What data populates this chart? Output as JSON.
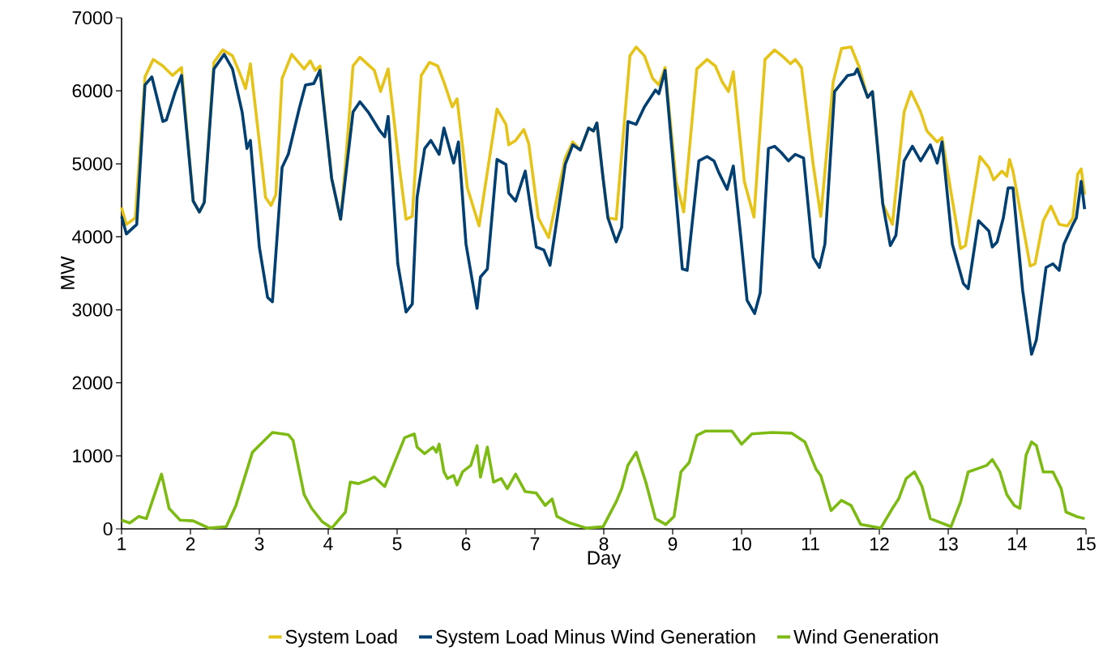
{
  "chart_data": {
    "type": "line",
    "xlabel": "Day",
    "ylabel": "MW",
    "xlim": [
      1,
      15
    ],
    "xticks": [
      1,
      2,
      3,
      4,
      5,
      6,
      7,
      8,
      9,
      10,
      11,
      12,
      13,
      14,
      15
    ],
    "ylim": [
      0,
      7000
    ],
    "yticks": [
      0,
      1000,
      2000,
      3000,
      4000,
      5000,
      6000,
      7000
    ],
    "grid": false,
    "legend": "bottom",
    "marker": "none",
    "line_style": "solid",
    "series": [
      {
        "name": "System Load",
        "color": "#e6c319",
        "x": [
          1.0,
          1.07,
          1.2,
          1.34,
          1.46,
          1.6,
          1.74,
          1.87,
          2.04,
          2.13,
          2.2,
          2.34,
          2.47,
          2.61,
          2.73,
          2.8,
          2.87,
          3.0,
          3.09,
          3.17,
          3.24,
          3.33,
          3.47,
          3.65,
          3.74,
          3.81,
          3.88,
          4.05,
          4.18,
          4.25,
          4.36,
          4.46,
          4.67,
          4.76,
          4.87,
          5.04,
          5.13,
          5.22,
          5.35,
          5.47,
          5.59,
          5.68,
          5.8,
          5.87,
          6.02,
          6.19,
          6.45,
          6.58,
          6.62,
          6.72,
          6.84,
          6.91,
          7.05,
          7.2,
          7.44,
          7.55,
          7.66,
          7.78,
          7.85,
          7.9,
          7.99,
          8.06,
          8.18,
          8.38,
          8.47,
          8.59,
          8.71,
          8.8,
          8.89,
          9.05,
          9.16,
          9.35,
          9.5,
          9.62,
          9.72,
          9.81,
          9.88,
          10.04,
          10.18,
          10.34,
          10.48,
          10.61,
          10.71,
          10.78,
          10.87,
          11.04,
          11.15,
          11.33,
          11.45,
          11.59,
          11.71,
          11.83,
          11.9,
          12.05,
          12.19,
          12.36,
          12.46,
          12.6,
          12.69,
          12.84,
          12.91,
          13.06,
          13.18,
          13.25,
          13.46,
          13.59,
          13.66,
          13.78,
          13.85,
          13.89,
          13.94,
          14.19,
          14.26,
          14.38,
          14.49,
          14.61,
          14.73,
          14.81,
          14.88,
          14.93,
          14.98
        ],
        "values": [
          4400,
          4170,
          4260,
          6190,
          6430,
          6340,
          6210,
          6320,
          4490,
          4340,
          4470,
          6390,
          6560,
          6480,
          6210,
          6030,
          6370,
          5300,
          4540,
          4430,
          4580,
          6170,
          6500,
          6300,
          6410,
          6280,
          6340,
          4800,
          4240,
          4990,
          6340,
          6460,
          6280,
          5990,
          6300,
          4900,
          4240,
          4280,
          6210,
          6390,
          6340,
          6120,
          5780,
          5890,
          4670,
          4150,
          5750,
          5540,
          5260,
          5320,
          5470,
          5280,
          4260,
          3990,
          5080,
          5300,
          5190,
          5490,
          5450,
          5560,
          4800,
          4260,
          4240,
          6480,
          6600,
          6480,
          6170,
          6080,
          6320,
          4760,
          4340,
          6300,
          6430,
          6340,
          6120,
          5990,
          6260,
          4760,
          4270,
          6430,
          6560,
          6460,
          6370,
          6430,
          6320,
          4990,
          4280,
          6120,
          6580,
          6600,
          6320,
          5910,
          5990,
          4450,
          4170,
          5710,
          5990,
          5710,
          5450,
          5300,
          5360,
          4500,
          3840,
          3880,
          5100,
          4950,
          4780,
          4900,
          4830,
          5060,
          4900,
          3600,
          3630,
          4220,
          4420,
          4170,
          4150,
          4260,
          4860,
          4930,
          4580
        ]
      },
      {
        "name": "System Load Minus Wind Generation",
        "color": "#003f72",
        "x": [
          1.0,
          1.07,
          1.22,
          1.34,
          1.44,
          1.6,
          1.65,
          1.78,
          1.87,
          2.04,
          2.13,
          2.2,
          2.34,
          2.49,
          2.61,
          2.75,
          2.82,
          2.87,
          3.0,
          3.12,
          3.19,
          3.33,
          3.42,
          3.58,
          3.67,
          3.79,
          3.88,
          4.05,
          4.18,
          4.36,
          4.46,
          4.58,
          4.75,
          4.82,
          4.87,
          5.01,
          5.13,
          5.22,
          5.29,
          5.4,
          5.49,
          5.61,
          5.68,
          5.82,
          5.89,
          6.0,
          6.16,
          6.21,
          6.31,
          6.45,
          6.58,
          6.62,
          6.72,
          6.86,
          7.02,
          7.13,
          7.22,
          7.44,
          7.55,
          7.66,
          7.78,
          7.85,
          7.9,
          7.99,
          8.06,
          8.18,
          8.26,
          8.35,
          8.47,
          8.59,
          8.75,
          8.8,
          8.89,
          9.05,
          9.14,
          9.21,
          9.38,
          9.5,
          9.6,
          9.67,
          9.79,
          9.88,
          9.99,
          10.08,
          10.19,
          10.27,
          10.39,
          10.48,
          10.58,
          10.68,
          10.78,
          10.9,
          11.04,
          11.13,
          11.21,
          11.35,
          11.54,
          11.64,
          11.68,
          11.83,
          11.9,
          12.05,
          12.16,
          12.24,
          12.36,
          12.48,
          12.6,
          12.74,
          12.84,
          12.91,
          13.06,
          13.22,
          13.29,
          13.44,
          13.59,
          13.64,
          13.71,
          13.8,
          13.87,
          13.94,
          14.08,
          14.21,
          14.28,
          14.42,
          14.52,
          14.61,
          14.68,
          14.81,
          14.86,
          14.93,
          14.98
        ],
        "values": [
          4280,
          4040,
          4170,
          6080,
          6190,
          5580,
          5600,
          5990,
          6210,
          4490,
          4340,
          4470,
          6300,
          6500,
          6300,
          5710,
          5210,
          5320,
          3860,
          3170,
          3110,
          4950,
          5130,
          5760,
          6080,
          6100,
          6280,
          4800,
          4240,
          5710,
          5850,
          5710,
          5450,
          5370,
          5650,
          3630,
          2970,
          3080,
          4540,
          5210,
          5320,
          5130,
          5490,
          5010,
          5300,
          3900,
          3020,
          3450,
          3560,
          5060,
          4990,
          4600,
          4490,
          4900,
          3860,
          3820,
          3610,
          4990,
          5260,
          5190,
          5490,
          5450,
          5560,
          4800,
          4260,
          3930,
          4130,
          5580,
          5540,
          5780,
          6010,
          5960,
          6280,
          4540,
          3560,
          3540,
          5040,
          5100,
          5040,
          4880,
          4650,
          4970,
          3990,
          3130,
          2950,
          3230,
          5210,
          5240,
          5150,
          5040,
          5130,
          5080,
          3720,
          3580,
          3900,
          5990,
          6210,
          6230,
          6300,
          5910,
          5990,
          4450,
          3880,
          4020,
          5040,
          5240,
          5040,
          5260,
          5010,
          5300,
          3900,
          3360,
          3290,
          4220,
          4080,
          3860,
          3930,
          4260,
          4670,
          4670,
          3270,
          2390,
          2590,
          3580,
          3630,
          3540,
          3900,
          4170,
          4260,
          4760,
          4380
        ]
      },
      {
        "name": "Wind Generation",
        "color": "#7dbb14",
        "x": [
          1.0,
          1.12,
          1.25,
          1.36,
          1.58,
          1.69,
          1.85,
          2.04,
          2.27,
          2.52,
          2.66,
          2.9,
          3.05,
          3.19,
          3.42,
          3.49,
          3.65,
          3.76,
          3.91,
          4.05,
          4.25,
          4.32,
          4.44,
          4.58,
          4.67,
          4.82,
          5.11,
          5.25,
          5.29,
          5.4,
          5.52,
          5.57,
          5.61,
          5.68,
          5.73,
          5.82,
          5.87,
          5.95,
          6.07,
          6.16,
          6.21,
          6.31,
          6.4,
          6.51,
          6.6,
          6.72,
          6.86,
          7.02,
          7.15,
          7.25,
          7.32,
          7.51,
          7.75,
          7.99,
          8.18,
          8.26,
          8.35,
          8.47,
          8.61,
          8.75,
          8.9,
          9.02,
          9.12,
          9.24,
          9.35,
          9.48,
          9.86,
          10.0,
          10.15,
          10.44,
          10.73,
          10.92,
          11.08,
          11.15,
          11.3,
          11.45,
          11.59,
          11.73,
          12.02,
          12.19,
          12.28,
          12.39,
          12.51,
          12.62,
          12.74,
          13.04,
          13.18,
          13.29,
          13.41,
          13.56,
          13.64,
          13.75,
          13.85,
          13.96,
          14.04,
          14.13,
          14.21,
          14.28,
          14.38,
          14.52,
          14.64,
          14.71,
          14.86,
          14.98
        ],
        "values": [
          120,
          80,
          170,
          140,
          750,
          280,
          120,
          110,
          10,
          30,
          320,
          1050,
          1190,
          1320,
          1290,
          1210,
          470,
          280,
          100,
          10,
          230,
          640,
          620,
          670,
          710,
          580,
          1250,
          1300,
          1120,
          1030,
          1120,
          1050,
          1160,
          780,
          690,
          730,
          600,
          780,
          870,
          1140,
          710,
          1120,
          640,
          690,
          550,
          750,
          510,
          490,
          320,
          410,
          170,
          80,
          10,
          30,
          370,
          550,
          870,
          1050,
          640,
          140,
          60,
          170,
          780,
          910,
          1280,
          1340,
          1340,
          1160,
          1300,
          1320,
          1310,
          1190,
          820,
          730,
          250,
          390,
          320,
          60,
          10,
          280,
          410,
          690,
          780,
          580,
          140,
          30,
          370,
          780,
          820,
          870,
          950,
          780,
          470,
          320,
          280,
          1010,
          1190,
          1140,
          780,
          780,
          550,
          230,
          170,
          140
        ]
      }
    ]
  }
}
